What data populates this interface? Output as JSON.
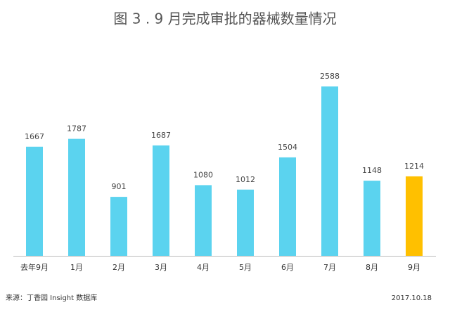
{
  "chart_data": {
    "type": "bar",
    "title": "图 3 . 9 月完成审批的器械数量情况",
    "categories": [
      "去年9月",
      "1月",
      "2月",
      "3月",
      "4月",
      "5月",
      "6月",
      "7月",
      "8月",
      "9月"
    ],
    "values": [
      1667,
      1787,
      901,
      1687,
      1080,
      1012,
      1504,
      2588,
      1148,
      1214
    ],
    "colors": [
      "#5bd3ef",
      "#5bd3ef",
      "#5bd3ef",
      "#5bd3ef",
      "#5bd3ef",
      "#5bd3ef",
      "#5bd3ef",
      "#5bd3ef",
      "#5bd3ef",
      "#ffc000"
    ],
    "source": "来源：丁香园 Insight 数据库",
    "date": "2017.10.18"
  }
}
